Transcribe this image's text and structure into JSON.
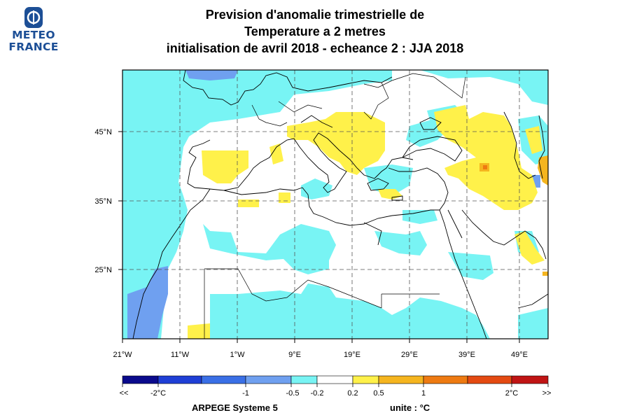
{
  "logo": {
    "line1": "METEO",
    "line2": "FRANCE",
    "brand_color": "#1d4f96"
  },
  "title": {
    "line1": "Prevision d'anomalie trimestrielle de",
    "line2": "Temperature a 2 metres",
    "line3": "initialisation de avril 2018  -  echeance 2 : JJA 2018"
  },
  "map": {
    "lon_range": [
      -21,
      53
    ],
    "lat_range": [
      15,
      54
    ],
    "lon_ticks": [
      "21°W",
      "11°W",
      "1°W",
      "9°E",
      "19°E",
      "29°E",
      "39°E",
      "49°E"
    ],
    "lat_ticks": [
      "45°N",
      "35°N",
      "25°N"
    ],
    "grid": "dashed"
  },
  "colorbar": {
    "labels": [
      "<<",
      "-2°C",
      "-1",
      "-0.5",
      "-0.2",
      "0.2",
      "0.5",
      "1",
      "2°C",
      ">>"
    ],
    "colors": [
      "#0a0a8c",
      "#1f3fd6",
      "#3a6fe6",
      "#6fa0f0",
      "#78f4f4",
      "#ffffff",
      "#fff14a",
      "#f5b51f",
      "#ee7a12",
      "#e44a12",
      "#c01414"
    ]
  },
  "footer": {
    "model": "ARPEGE Systeme 5",
    "unit": "unite : °C"
  }
}
